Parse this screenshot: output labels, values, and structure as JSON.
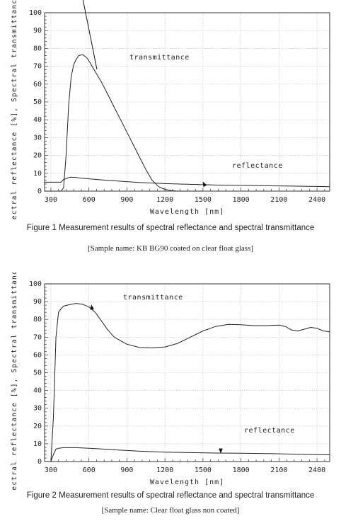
{
  "chart_data": [
    {
      "type": "line",
      "ylabel": "Spectral reflectance [%],  Spectral transmittance [%]",
      "xlabel": "Wavelength [nm]",
      "xlim": [
        250,
        2500
      ],
      "ylim": [
        0,
        100
      ],
      "xticks": [
        "300",
        "600",
        "900",
        "1200",
        "1500",
        "1800",
        "2100",
        "2400"
      ],
      "yticks": [
        "0",
        "10",
        "20",
        "30",
        "40",
        "50",
        "60",
        "70",
        "80",
        "90",
        "100"
      ],
      "grid": true,
      "series": [
        {
          "name": "transmittance",
          "x": [
            250,
            380,
            400,
            420,
            440,
            460,
            480,
            500,
            520,
            550,
            580,
            600,
            650,
            700,
            750,
            800,
            850,
            900,
            950,
            1000,
            1050,
            1100,
            1150,
            1200,
            1250,
            1300,
            1400,
            1500
          ],
          "y": [
            0,
            0,
            2,
            20,
            48,
            64,
            71,
            74,
            76,
            76.5,
            75,
            73,
            67,
            61,
            54,
            47,
            40,
            33,
            26,
            19,
            12,
            6,
            2.5,
            1,
            0.3,
            0,
            0,
            0
          ]
        },
        {
          "name": "reflectance",
          "x": [
            250,
            300,
            380,
            400,
            450,
            500,
            550,
            600,
            700,
            800,
            900,
            1000,
            1200,
            1400,
            1600,
            1800,
            2000,
            2200,
            2400,
            2500
          ],
          "y": [
            5,
            5,
            5,
            6.5,
            7.8,
            7.6,
            7.2,
            6.9,
            6.3,
            5.8,
            5.3,
            4.8,
            4.2,
            3.8,
            3.4,
            3.2,
            3.0,
            2.8,
            2.6,
            2.5
          ]
        }
      ],
      "annotations": [
        "transmittance",
        "reflectance"
      ],
      "caption": "Figure 1 Measurement results of spectral reflectance and spectral transmittance",
      "subcaption": "[Sample name: KB BG90 coated on clear float glass]"
    },
    {
      "type": "line",
      "ylabel": "Spectral reflectance [%],  Spectral transmittance [%]",
      "xlabel": "Wavelength [nm]",
      "xlim": [
        250,
        2500
      ],
      "ylim": [
        0,
        100
      ],
      "xticks": [
        "300",
        "600",
        "900",
        "1200",
        "1500",
        "1800",
        "2100",
        "2400"
      ],
      "yticks": [
        "0",
        "10",
        "20",
        "30",
        "40",
        "50",
        "60",
        "70",
        "80",
        "90",
        "100"
      ],
      "grid": true,
      "series": [
        {
          "name": "transmittance",
          "x": [
            250,
            300,
            320,
            340,
            360,
            380,
            400,
            430,
            460,
            500,
            550,
            600,
            650,
            700,
            750,
            800,
            900,
            1000,
            1100,
            1200,
            1300,
            1400,
            1500,
            1600,
            1700,
            1800,
            1900,
            2000,
            2100,
            2150,
            2200,
            2250,
            2300,
            2350,
            2400,
            2450,
            2500
          ],
          "y": [
            0,
            0,
            25,
            70,
            84,
            86,
            87.5,
            88,
            88.5,
            89,
            88.5,
            87,
            84,
            79,
            74,
            70,
            66,
            64.2,
            64,
            64.5,
            66.5,
            70,
            73.5,
            76,
            77.2,
            77,
            76.5,
            76.5,
            76.8,
            76,
            74,
            73.5,
            74.5,
            75.5,
            75,
            73.5,
            73
          ]
        },
        {
          "name": "reflectance",
          "x": [
            250,
            300,
            320,
            340,
            360,
            400,
            500,
            600,
            800,
            1000,
            1200,
            1400,
            1600,
            1800,
            2000,
            2200,
            2400,
            2500
          ],
          "y": [
            0,
            0,
            4,
            7,
            7.5,
            7.8,
            7.8,
            7.5,
            6.6,
            5.8,
            5.3,
            5.0,
            4.8,
            4.7,
            4.5,
            4.2,
            3.9,
            3.8
          ]
        }
      ],
      "annotations": [
        "transmittance",
        "reflectance"
      ],
      "caption": "Figure 2 Measurement results of spectral reflectance and spectral transmittance",
      "subcaption": "[Sample name: Clear float glass non coated]"
    }
  ]
}
